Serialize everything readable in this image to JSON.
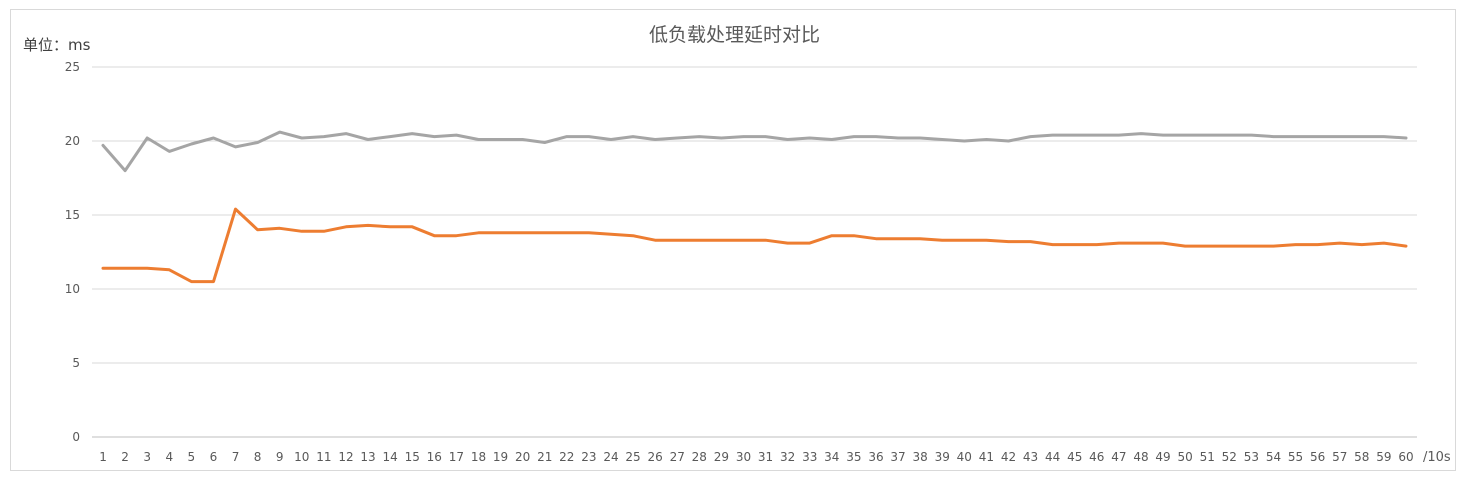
{
  "chart_data": {
    "type": "line",
    "title": "低负载处理延时对比",
    "ylabel": "单位：ms",
    "xlabel": "/10s",
    "ylim": [
      0,
      25
    ],
    "yticks": [
      0,
      5,
      10,
      15,
      20,
      25
    ],
    "grid": true,
    "categories": [
      1,
      2,
      3,
      4,
      5,
      6,
      7,
      8,
      9,
      10,
      11,
      12,
      13,
      14,
      15,
      16,
      17,
      18,
      19,
      20,
      21,
      22,
      23,
      24,
      25,
      26,
      27,
      28,
      29,
      30,
      31,
      32,
      33,
      34,
      35,
      36,
      37,
      38,
      39,
      40,
      41,
      42,
      43,
      44,
      45,
      46,
      47,
      48,
      49,
      50,
      51,
      52,
      53,
      54,
      55,
      56,
      57,
      58,
      59,
      60
    ],
    "series": [
      {
        "color": "#a5a5a5",
        "values": [
          19.7,
          18.0,
          20.2,
          19.3,
          19.8,
          20.2,
          19.6,
          19.9,
          20.6,
          20.2,
          20.3,
          20.5,
          20.1,
          20.3,
          20.5,
          20.3,
          20.4,
          20.1,
          20.1,
          20.1,
          19.9,
          20.3,
          20.3,
          20.1,
          20.3,
          20.1,
          20.2,
          20.3,
          20.2,
          20.3,
          20.3,
          20.1,
          20.2,
          20.1,
          20.3,
          20.3,
          20.2,
          20.2,
          20.1,
          20.0,
          20.1,
          20.0,
          20.3,
          20.4,
          20.4,
          20.4,
          20.4,
          20.5,
          20.4,
          20.4,
          20.4,
          20.4,
          20.4,
          20.3,
          20.3,
          20.3,
          20.3,
          20.3,
          20.3,
          20.2
        ]
      },
      {
        "color": "#ed7d31",
        "values": [
          11.4,
          11.4,
          11.4,
          11.3,
          10.5,
          10.5,
          15.4,
          14.0,
          14.1,
          13.9,
          13.9,
          14.2,
          14.3,
          14.2,
          14.2,
          13.6,
          13.6,
          13.8,
          13.8,
          13.8,
          13.8,
          13.8,
          13.8,
          13.7,
          13.6,
          13.3,
          13.3,
          13.3,
          13.3,
          13.3,
          13.3,
          13.1,
          13.1,
          13.6,
          13.6,
          13.4,
          13.4,
          13.4,
          13.3,
          13.3,
          13.3,
          13.2,
          13.2,
          13.0,
          13.0,
          13.0,
          13.1,
          13.1,
          13.1,
          12.9,
          12.9,
          12.9,
          12.9,
          12.9,
          13.0,
          13.0,
          13.1,
          13.0,
          13.1,
          12.9
        ]
      }
    ]
  }
}
